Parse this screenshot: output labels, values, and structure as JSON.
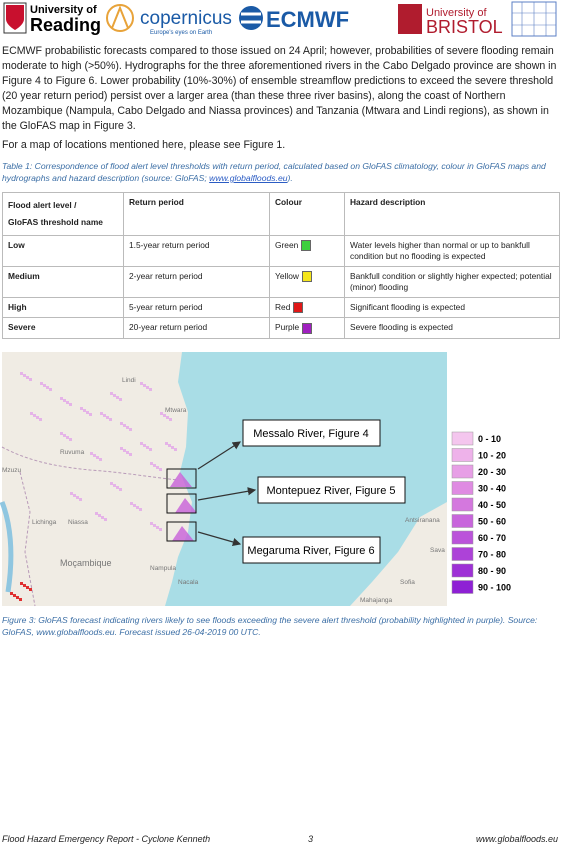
{
  "header": {
    "logos": [
      "University of",
      "Reading",
      "copernicus",
      "Europe's eyes on Earth",
      "ECMWF",
      "University of",
      "BRISTOL"
    ]
  },
  "paragraphs": [
    "ECMWF probabilistic forecasts compared to those issued on 24 April; however, probabilities of severe flooding remain moderate to high (>50%). Hydrographs for the three aforementioned rivers in the Cabo Delgado province are shown in Figure 4 to Figure 6. Lower probability (10%-30%) of ensemble streamflow predictions to exceed the severe threshold (20 year return period) persist over a larger area (than these three river basins), along the coast of Northern Mozambique (Nampula, Cabo Delgado and Niassa provinces) and Tanzania (Mtwara and Lindi regions), as shown in the GloFAS map in Figure 3.",
    "For a map of locations mentioned here, please see Figure 1."
  ],
  "table_caption": {
    "text": "Table 1: Correspondence of flood alert level thresholds with return period, calculated based on GloFAS climatology, colour in GloFAS maps and hydrographs and hazard description (source: GloFAS; ",
    "link": "www.globalfloods.eu",
    "end": ")."
  },
  "table": {
    "header": [
      "Flood alert level /",
      "GloFAS threshold name",
      "Return period",
      "Colour",
      "Hazard description"
    ],
    "rows": [
      [
        "Low",
        "1.5-year return period",
        "Green",
        "Water levels higher than normal or up to bankfull condition but no flooding is expected"
      ],
      [
        "Medium",
        "2-year return period",
        "Yellow",
        "Bankfull condition or slightly higher expected; potential (minor) flooding"
      ],
      [
        "High",
        "5-year return period",
        "Red",
        "Significant flooding is expected"
      ],
      [
        "Severe",
        "20-year return period",
        "Purple",
        "Severe flooding is expected"
      ]
    ],
    "swatches": [
      "#3ecf3e",
      "#f5e61c",
      "#e01818",
      "#a020c0"
    ]
  },
  "map": {
    "places": [
      "Lindi",
      "Ruvuma",
      "Mtwara",
      "Mzuzu",
      "Niassa",
      "Lichinga",
      "Moçambique",
      "Nampula",
      "Nacala",
      "Antsiranana",
      "Mahajanga",
      "Sofia",
      "Sava"
    ],
    "callouts": [
      "Messalo River, Figure 4",
      "Montepuez River, Figure 5",
      "Megaruma River, Figure 6"
    ],
    "legend": [
      {
        "label": "0 - 10",
        "color": "#f4c6ee"
      },
      {
        "label": "10 - 20",
        "color": "#eeb2ea"
      },
      {
        "label": "20 - 30",
        "color": "#e79fe6"
      },
      {
        "label": "30 - 40",
        "color": "#df8be2"
      },
      {
        "label": "40 - 50",
        "color": "#d478de"
      },
      {
        "label": "50 - 60",
        "color": "#c865dc"
      },
      {
        "label": "60 - 70",
        "color": "#bb53da"
      },
      {
        "label": "70 - 80",
        "color": "#ad42d8"
      },
      {
        "label": "80 - 90",
        "color": "#9e31d6"
      },
      {
        "label": "90 - 100",
        "color": "#8e20d4"
      }
    ]
  },
  "figure_caption": "Figure 3: GloFAS forecast indicating rivers likely to see floods exceeding the severe alert threshold (probability highlighted in purple). Source: GloFAS, www.globalfloods.eu. Forecast issued 26-04-2019 00 UTC.",
  "footer": {
    "left": "Flood Hazard Emergency Report - Cyclone Kenneth",
    "page": "3",
    "right": "www.globalfloods.eu"
  }
}
